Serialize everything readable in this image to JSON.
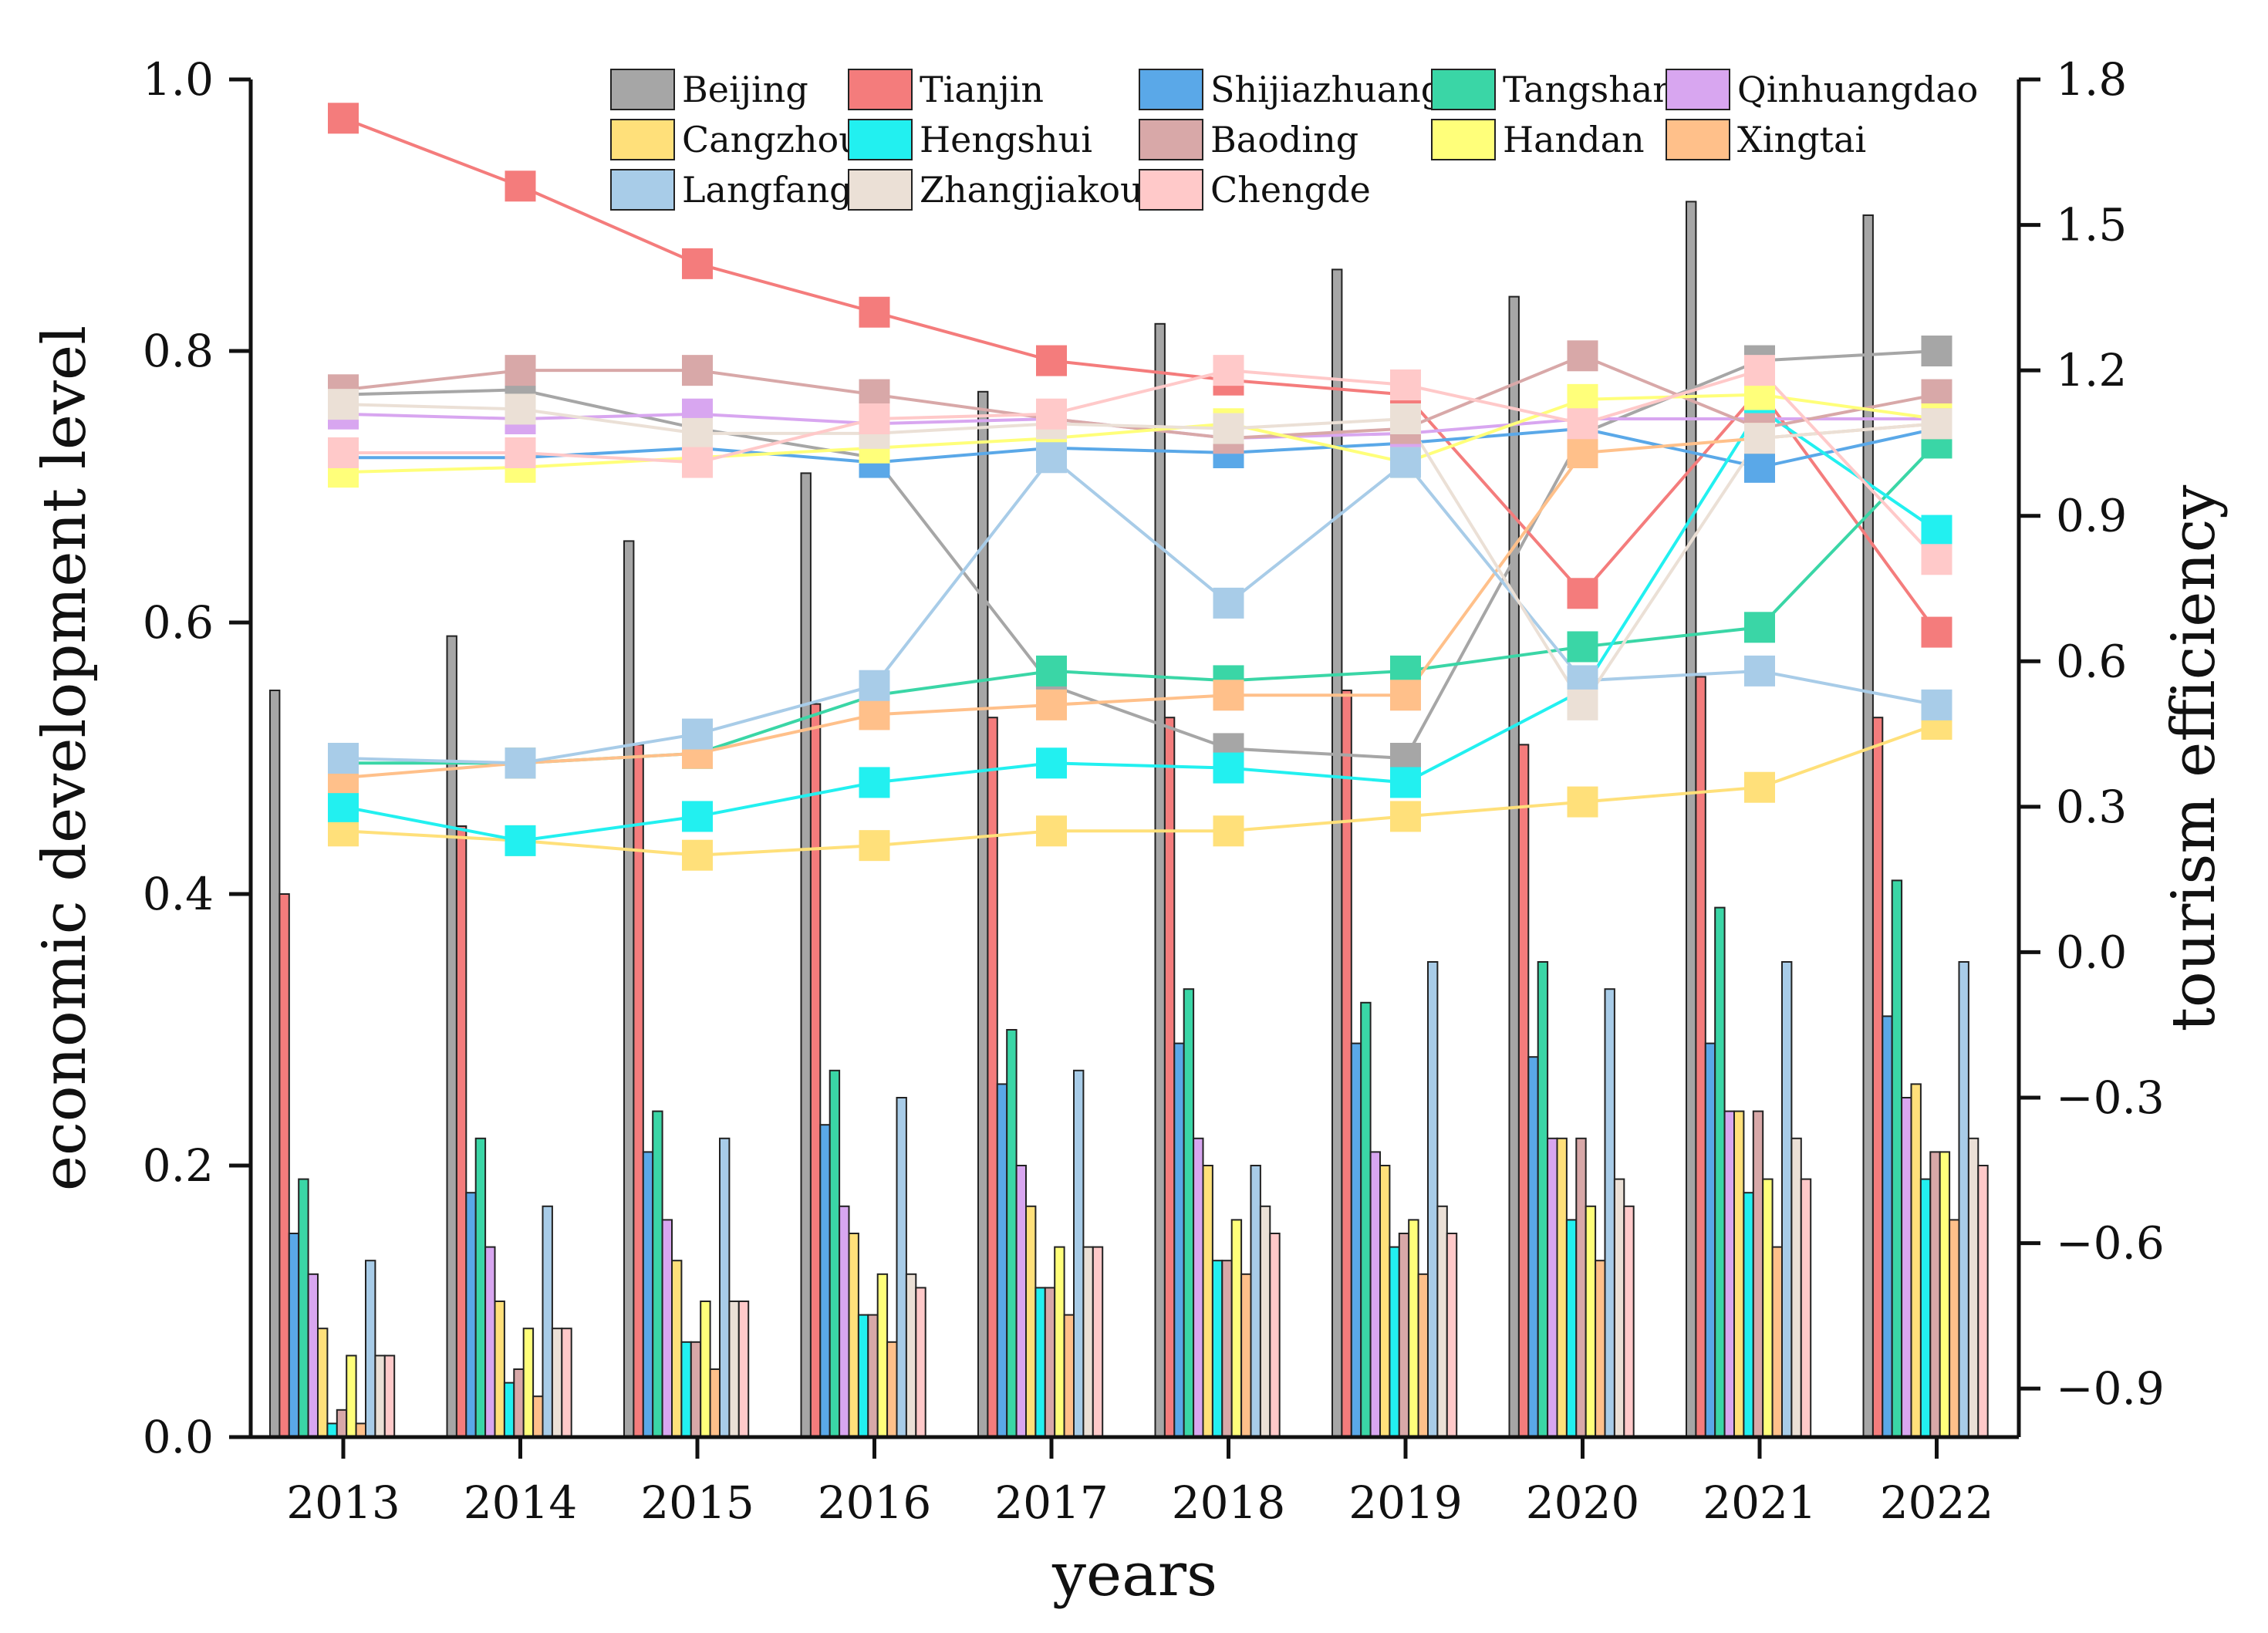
{
  "chart_data": {
    "type": "bar+line",
    "title": "",
    "xlabel": "years",
    "ylabel_left": "economic development level",
    "ylabel_right": "tourism efficiency",
    "ylim_left": [
      0.0,
      1.0
    ],
    "ylim_right": [
      -1.0,
      1.8
    ],
    "left_ticks": [
      "0.0",
      "0.2",
      "0.4",
      "0.6",
      "0.8",
      "1.0"
    ],
    "left_tick_values": [
      0.0,
      0.2,
      0.4,
      0.6,
      0.8,
      1.0
    ],
    "right_ticks": [
      "−0.9",
      "−0.6",
      "−0.3",
      "0.0",
      "0.3",
      "0.6",
      "0.9",
      "1.2",
      "1.5",
      "1.8"
    ],
    "right_tick_values": [
      -0.9,
      -0.6,
      -0.3,
      0.0,
      0.3,
      0.6,
      0.9,
      1.2,
      1.5,
      1.8
    ],
    "categories": [
      "2013",
      "2014",
      "2015",
      "2016",
      "2017",
      "2018",
      "2019",
      "2020",
      "2021",
      "2022"
    ],
    "legend_position": "top",
    "series": [
      {
        "name": "Beijing",
        "color": "#a6a6a6",
        "bar_values": [
          0.55,
          0.59,
          0.66,
          0.71,
          0.77,
          0.82,
          0.86,
          0.84,
          0.91,
          0.9
        ],
        "line_values": [
          1.15,
          1.16,
          1.08,
          1.02,
          0.55,
          0.42,
          0.4,
          1.07,
          1.22,
          1.24
        ]
      },
      {
        "name": "Tianjin",
        "color": "#f47c7c",
        "bar_values": [
          0.4,
          0.45,
          0.51,
          0.54,
          0.53,
          0.53,
          0.55,
          0.51,
          0.56,
          0.53
        ],
        "line_values": [
          1.72,
          1.58,
          1.42,
          1.32,
          1.22,
          1.18,
          1.15,
          0.74,
          1.16,
          0.66
        ]
      },
      {
        "name": "Shijiazhuang",
        "color": "#5aa8e8",
        "bar_values": [
          0.15,
          0.18,
          0.21,
          0.23,
          0.26,
          0.29,
          0.29,
          0.28,
          0.29,
          0.31
        ],
        "line_values": [
          1.02,
          1.02,
          1.04,
          1.01,
          1.04,
          1.03,
          1.05,
          1.08,
          1.0,
          1.08
        ]
      },
      {
        "name": "Tangshan",
        "color": "#3ad6a6",
        "bar_values": [
          0.19,
          0.22,
          0.24,
          0.27,
          0.3,
          0.33,
          0.32,
          0.35,
          0.39,
          0.41
        ],
        "line_values": [
          0.39,
          0.39,
          0.41,
          0.53,
          0.58,
          0.56,
          0.58,
          0.63,
          0.67,
          1.05
        ]
      },
      {
        "name": "Qinhuangdao",
        "color": "#d8a6f0",
        "bar_values": [
          0.12,
          0.14,
          0.16,
          0.17,
          0.2,
          0.22,
          0.21,
          0.22,
          0.24,
          0.25
        ],
        "line_values": [
          1.11,
          1.1,
          1.11,
          1.09,
          1.1,
          1.06,
          1.07,
          1.1,
          1.1,
          1.1
        ]
      },
      {
        "name": "Cangzhou",
        "color": "#ffe07a",
        "bar_values": [
          0.08,
          0.1,
          0.13,
          0.15,
          0.17,
          0.2,
          0.2,
          0.22,
          0.24,
          0.26
        ],
        "line_values": [
          0.25,
          0.23,
          0.2,
          0.22,
          0.25,
          0.25,
          0.28,
          0.31,
          0.34,
          0.47
        ]
      },
      {
        "name": "Hengshui",
        "color": "#22f0f0",
        "bar_values": [
          0.01,
          0.04,
          0.07,
          0.09,
          0.11,
          0.13,
          0.14,
          0.16,
          0.18,
          0.19
        ],
        "line_values": [
          0.3,
          0.23,
          0.28,
          0.35,
          0.39,
          0.38,
          0.35,
          0.54,
          1.12,
          0.87
        ]
      },
      {
        "name": "Baoding",
        "color": "#d8a8a8",
        "bar_values": [
          0.02,
          0.05,
          0.07,
          0.09,
          0.11,
          0.13,
          0.15,
          0.22,
          0.24,
          0.21
        ],
        "line_values": [
          1.16,
          1.2,
          1.2,
          1.15,
          1.1,
          1.06,
          1.08,
          1.23,
          1.08,
          1.15
        ]
      },
      {
        "name": "Handan",
        "color": "#ffff7a",
        "bar_values": [
          0.06,
          0.08,
          0.1,
          0.12,
          0.14,
          0.16,
          0.16,
          0.17,
          0.19,
          0.21
        ],
        "line_values": [
          0.99,
          1.0,
          1.02,
          1.04,
          1.06,
          1.09,
          1.01,
          1.14,
          1.15,
          1.1
        ]
      },
      {
        "name": "Xingtai",
        "color": "#ffc08a",
        "bar_values": [
          0.01,
          0.03,
          0.05,
          0.07,
          0.09,
          0.12,
          0.12,
          0.13,
          0.14,
          0.16
        ],
        "line_values": [
          0.36,
          0.39,
          0.41,
          0.49,
          0.51,
          0.53,
          0.53,
          1.03,
          1.06,
          1.09
        ]
      },
      {
        "name": "Langfang",
        "color": "#a8cce8",
        "bar_values": [
          0.13,
          0.17,
          0.22,
          0.25,
          0.27,
          0.2,
          0.35,
          0.33,
          0.35,
          0.35
        ],
        "line_values": [
          0.4,
          0.39,
          0.45,
          0.55,
          1.02,
          0.72,
          1.01,
          0.56,
          0.58,
          0.51
        ]
      },
      {
        "name": "Zhangjiakou",
        "color": "#ebe0d6",
        "bar_values": [
          0.06,
          0.08,
          0.1,
          0.12,
          0.14,
          0.17,
          0.17,
          0.19,
          0.22,
          0.22
        ],
        "line_values": [
          1.13,
          1.12,
          1.07,
          1.07,
          1.09,
          1.08,
          1.1,
          0.51,
          1.06,
          1.09
        ]
      },
      {
        "name": "Chengde",
        "color": "#ffc9c9",
        "bar_values": [
          0.06,
          0.08,
          0.1,
          0.11,
          0.14,
          0.15,
          0.15,
          0.17,
          0.19,
          0.2
        ],
        "line_values": [
          1.03,
          1.03,
          1.01,
          1.1,
          1.11,
          1.2,
          1.17,
          1.09,
          1.2,
          0.81
        ]
      }
    ]
  }
}
